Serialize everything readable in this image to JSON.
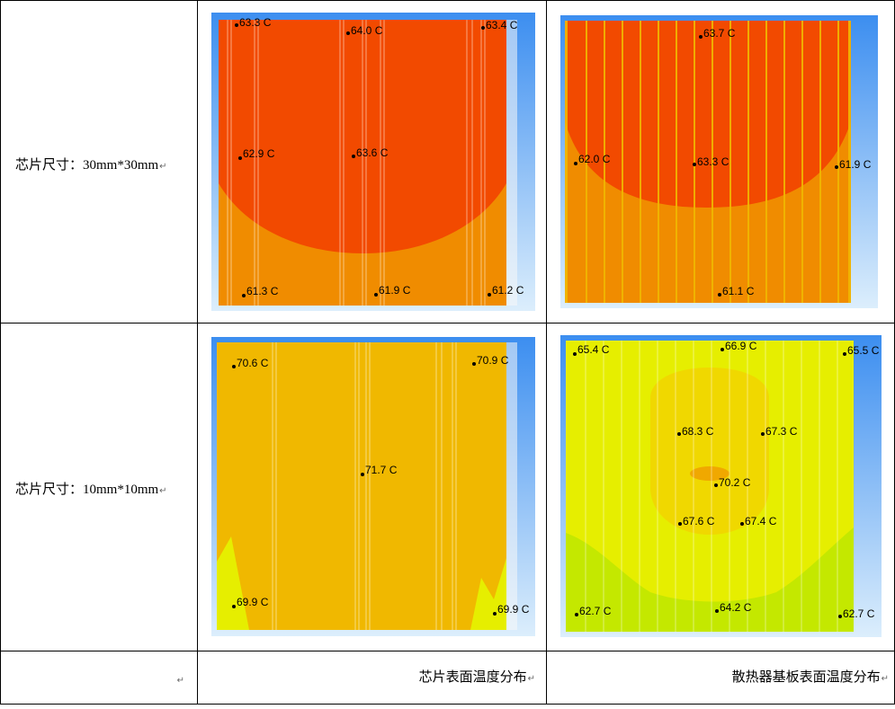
{
  "rows": [
    {
      "label": "芯片尺寸：30mm*30mm",
      "mark": "↵"
    },
    {
      "label": "芯片尺寸：10mm*10mm",
      "mark": "↵"
    }
  ],
  "footer": {
    "col0_mark": "↵",
    "col1": "芯片表面温度分布",
    "col1_mark": "↵",
    "col2": "散热器基板表面温度分布",
    "col2_mark": "↵"
  },
  "colors": {
    "hot": "#f24a00",
    "warm": "#f08c00",
    "amber": "#f0b800",
    "yellow": "#e6ee00",
    "yellow_deep": "#f0d800",
    "lime": "#c4e800",
    "orange_core": "#f0a800",
    "bg_blue": "#3c8ef0"
  },
  "plots": {
    "chip30": {
      "probes": [
        "63.3 C",
        "64.0 C",
        "63.4 C",
        "62.9 C",
        "63.6 C",
        "61.3 C",
        "61.9 C",
        "61.2 C"
      ]
    },
    "sink30": {
      "probes": [
        "63.7 C",
        "62.0 C",
        "63.3 C",
        "61.9 C",
        "61.1 C"
      ]
    },
    "chip10": {
      "probes": [
        "70.6 C",
        "70.9 C",
        "71.7 C",
        "69.9 C",
        "69.9 C"
      ]
    },
    "sink10": {
      "probes": [
        "65.4 C",
        "66.9 C",
        "65.5 C",
        "68.3 C",
        "67.3 C",
        "70.2 C",
        "67.6 C",
        "67.4 C",
        "62.7 C",
        "64.2 C",
        "62.7 C"
      ]
    }
  }
}
